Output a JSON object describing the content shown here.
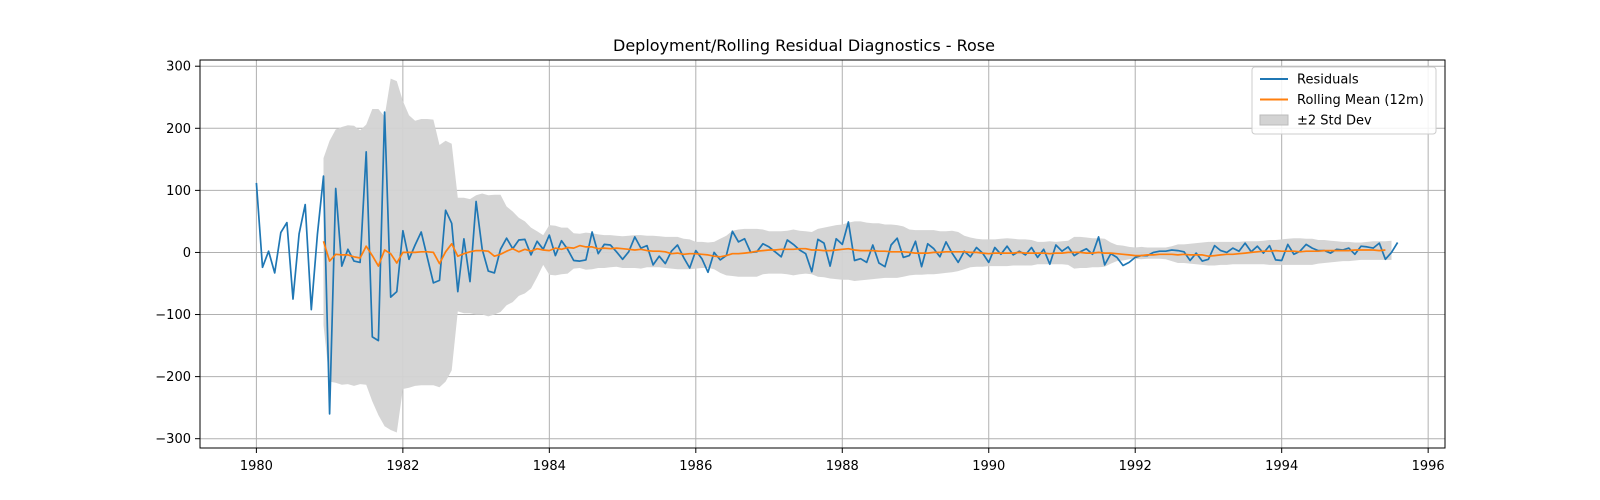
{
  "chart_data": {
    "type": "line",
    "title": "Deployment/Rolling Residual Diagnostics - Rose",
    "xlabel": "",
    "ylabel": "",
    "xlim": [
      1979.23,
      1996.23
    ],
    "ylim": [
      -315,
      310
    ],
    "x_ticks": [
      1980,
      1982,
      1984,
      1986,
      1988,
      1990,
      1992,
      1994,
      1996
    ],
    "y_ticks": [
      -300,
      -200,
      -100,
      0,
      100,
      200,
      300
    ],
    "x_tick_labels": [
      "1980",
      "1982",
      "1984",
      "1986",
      "1988",
      "1990",
      "1992",
      "1994",
      "1996"
    ],
    "y_tick_labels": [
      "−300",
      "−200",
      "−100",
      "0",
      "100",
      "200",
      "300"
    ],
    "grid": true,
    "legend_position": "top-right",
    "legend": [
      {
        "label": "Residuals",
        "kind": "line",
        "color": "#1f77b4"
      },
      {
        "label": "Rolling Mean (12m)",
        "kind": "line",
        "color": "#ff7f0e"
      },
      {
        "label": "±2 Std Dev",
        "kind": "band",
        "color": "#d3d3d3"
      }
    ],
    "x_start": 1980.0,
    "x_step": 0.0833333,
    "residuals": {
      "name": "Residuals",
      "color": "#1f77b4",
      "values": [
        112,
        -24,
        2,
        -33,
        32,
        48,
        -75,
        30,
        77,
        -92,
        29,
        123,
        -260,
        103,
        -22,
        5,
        -14,
        -16,
        162,
        -136,
        -142,
        226,
        -72,
        -63,
        35,
        -11,
        12,
        33,
        -8,
        -49,
        -45,
        68,
        47,
        -63,
        22,
        -47,
        82,
        5,
        -30,
        -33,
        5,
        23,
        6,
        20,
        21,
        -4,
        18,
        5,
        28,
        -5,
        19,
        5,
        -13,
        -14,
        -12,
        33,
        -2,
        13,
        12,
        1,
        -11,
        1,
        25,
        7,
        11,
        -20,
        -6,
        -18,
        2,
        12,
        -8,
        -25,
        3,
        -10,
        -32,
        0,
        -12,
        -5,
        34,
        17,
        22,
        0,
        1,
        14,
        9,
        1,
        -7,
        20,
        13,
        4,
        -2,
        -31,
        21,
        15,
        -22,
        22,
        13,
        49,
        -13,
        -10,
        -16,
        12,
        -17,
        -23,
        12,
        23,
        -8,
        -5,
        18,
        -23,
        14,
        6,
        -7,
        17,
        -1,
        -16,
        2,
        -7,
        8,
        -1,
        -16,
        8,
        -3,
        10,
        -4,
        2,
        -4,
        8,
        -8,
        5,
        -19,
        12,
        2,
        9,
        -5,
        1,
        6,
        -3,
        25,
        -20,
        -2,
        -8,
        -21,
        -16,
        -8,
        -5,
        -5,
        0,
        2,
        2,
        4,
        3,
        1,
        -13,
        -1,
        -14,
        -11,
        11,
        3,
        0,
        7,
        2,
        15,
        1,
        10,
        -1,
        11,
        -12,
        -13,
        13,
        -3,
        2,
        13,
        7,
        3,
        3,
        -1,
        5,
        4,
        7,
        -3,
        10,
        9,
        7,
        15,
        -11,
        0,
        16
      ]
    },
    "rolling_mean": {
      "name": "Rolling Mean (12m)",
      "color": "#ff7f0e",
      "values": [
        null,
        null,
        null,
        null,
        null,
        null,
        null,
        null,
        null,
        null,
        null,
        18,
        -14,
        -3,
        -4,
        -4,
        -7,
        -9,
        10,
        -5,
        -22,
        4,
        -2,
        -17,
        0,
        0,
        0,
        1,
        1,
        0,
        -18,
        1,
        14,
        -6,
        -2,
        1,
        3,
        3,
        2,
        -6,
        -3,
        2,
        6,
        1,
        5,
        2,
        6,
        4,
        3,
        7,
        5,
        8,
        7,
        11,
        9,
        9,
        6,
        7,
        6,
        7,
        6,
        5,
        4,
        5,
        3,
        2,
        2,
        1,
        -2,
        -1,
        -3,
        -2,
        -2,
        -3,
        -4,
        -6,
        -7,
        -5,
        -2,
        -2,
        -1,
        0,
        2,
        3,
        4,
        4,
        5,
        5,
        5,
        6,
        6,
        4,
        4,
        3,
        3,
        4,
        5,
        6,
        4,
        3,
        3,
        3,
        2,
        2,
        1,
        1,
        1,
        0,
        -1,
        -1,
        -1,
        0,
        0,
        1,
        1,
        1,
        1,
        0,
        0,
        -1,
        -2,
        -1,
        -1,
        -1,
        -1,
        0,
        -1,
        -1,
        -1,
        -1,
        -2,
        -1,
        -1,
        0,
        0,
        0,
        -1,
        -1,
        0,
        -1,
        -1,
        -2,
        -3,
        -4,
        -5,
        -5,
        -4,
        -4,
        -3,
        -3,
        -3,
        -4,
        -3,
        -4,
        -4,
        -4,
        -6,
        -5,
        -4,
        -3,
        -3,
        -2,
        -1,
        0,
        1,
        2,
        2,
        3,
        2,
        2,
        2,
        1,
        2,
        2,
        2,
        3,
        3,
        3,
        3,
        3,
        4,
        4,
        4,
        4,
        3,
        4
      ]
    },
    "std_band": {
      "name": "±2 Std Dev",
      "color": "#d3d3d3",
      "upper": [
        null,
        null,
        null,
        null,
        null,
        null,
        null,
        null,
        null,
        null,
        null,
        152,
        180,
        198,
        202,
        205,
        204,
        197,
        206,
        231,
        231,
        219,
        280,
        276,
        244,
        221,
        212,
        215,
        215,
        214,
        173,
        180,
        175,
        88,
        88,
        86,
        92,
        95,
        92,
        93,
        93,
        74,
        66,
        56,
        50,
        40,
        34,
        28,
        44,
        43,
        40,
        40,
        31,
        30,
        32,
        31,
        29,
        28,
        28,
        27,
        26,
        27,
        28,
        28,
        27,
        27,
        26,
        25,
        25,
        25,
        22,
        21,
        17,
        17,
        16,
        17,
        22,
        27,
        35,
        37,
        38,
        38,
        38,
        37,
        34,
        34,
        34,
        35,
        37,
        35,
        34,
        33,
        38,
        40,
        42,
        44,
        45,
        48,
        50,
        50,
        48,
        47,
        47,
        45,
        45,
        44,
        42,
        37,
        36,
        36,
        36,
        36,
        34,
        34,
        35,
        33,
        27,
        24,
        22,
        21,
        21,
        21,
        22,
        23,
        22,
        21,
        21,
        20,
        17,
        17,
        18,
        17,
        18,
        19,
        25,
        25,
        24,
        23,
        23,
        22,
        16,
        12,
        11,
        9,
        8,
        9,
        8,
        8,
        8,
        8,
        10,
        13,
        13,
        14,
        15,
        16,
        17,
        17,
        17,
        17,
        17,
        17,
        18,
        18,
        18,
        19,
        20,
        20,
        21,
        22,
        23,
        23,
        22,
        22,
        20,
        20,
        19,
        18,
        17,
        17,
        16,
        16,
        17,
        18,
        18,
        18,
        19
      ],
      "lower": [
        null,
        null,
        null,
        null,
        null,
        null,
        null,
        null,
        null,
        null,
        null,
        -117,
        -208,
        -210,
        -213,
        -212,
        -215,
        -212,
        -213,
        -240,
        -262,
        -280,
        -286,
        -290,
        -220,
        -218,
        -215,
        -214,
        -214,
        -214,
        -217,
        -208,
        -190,
        -95,
        -98,
        -98,
        -100,
        -100,
        -103,
        -100,
        -96,
        -85,
        -80,
        -70,
        -66,
        -58,
        -40,
        -20,
        -36,
        -37,
        -35,
        -34,
        -26,
        -25,
        -28,
        -27,
        -25,
        -25,
        -24,
        -23,
        -25,
        -25,
        -25,
        -26,
        -24,
        -24,
        -24,
        -25,
        -26,
        -27,
        -27,
        -27,
        -26,
        -25,
        -25,
        -27,
        -33,
        -37,
        -38,
        -39,
        -39,
        -39,
        -39,
        -35,
        -34,
        -34,
        -34,
        -35,
        -37,
        -35,
        -34,
        -35,
        -39,
        -40,
        -42,
        -43,
        -44,
        -44,
        -46,
        -45,
        -44,
        -43,
        -42,
        -41,
        -41,
        -41,
        -39,
        -37,
        -36,
        -36,
        -35,
        -35,
        -34,
        -33,
        -32,
        -30,
        -27,
        -24,
        -23,
        -23,
        -22,
        -22,
        -22,
        -22,
        -21,
        -21,
        -21,
        -21,
        -19,
        -19,
        -19,
        -19,
        -19,
        -20,
        -26,
        -25,
        -25,
        -24,
        -24,
        -23,
        -18,
        -14,
        -13,
        -11,
        -10,
        -11,
        -10,
        -10,
        -10,
        -11,
        -14,
        -17,
        -17,
        -18,
        -19,
        -20,
        -21,
        -21,
        -20,
        -20,
        -19,
        -19,
        -19,
        -19,
        -19,
        -19,
        -20,
        -20,
        -20,
        -20,
        -20,
        -20,
        -20,
        -20,
        -18,
        -17,
        -16,
        -15,
        -14,
        -14,
        -13,
        -12,
        -12,
        -12,
        -12,
        -12,
        -12
      ]
    }
  }
}
